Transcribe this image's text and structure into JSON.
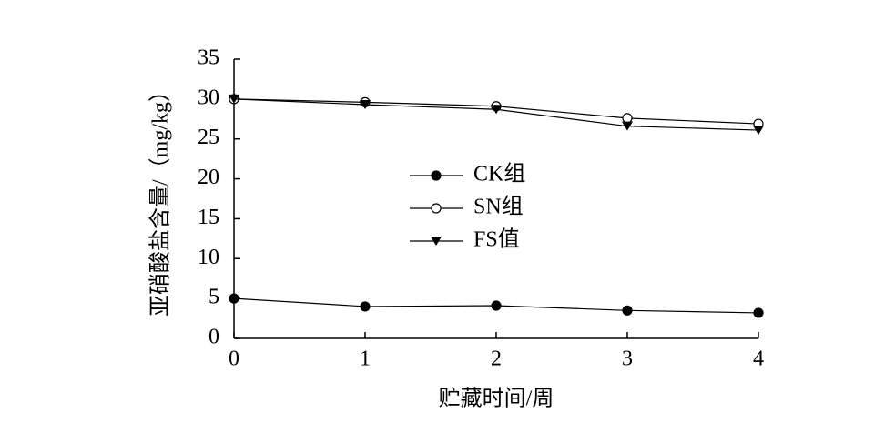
{
  "chart_data": {
    "type": "line",
    "x_label": "贮藏时间/周",
    "y_label": "亚硝酸盐含量/（mg/kg）",
    "x": [
      0,
      1,
      2,
      3,
      4
    ],
    "xlim": [
      0,
      4
    ],
    "xticks": [
      0,
      1,
      2,
      3,
      4
    ],
    "ylim": [
      0,
      35
    ],
    "yticks": [
      0,
      5,
      10,
      15,
      20,
      25,
      30,
      35
    ],
    "series": [
      {
        "name": "CK组",
        "color": "#000000",
        "marker": "filled-circle",
        "values": [
          5.0,
          4.0,
          4.1,
          3.5,
          3.2
        ]
      },
      {
        "name": "SN组",
        "color": "#000000",
        "marker": "open-circle",
        "values": [
          30.0,
          29.6,
          29.1,
          27.6,
          26.9
        ]
      },
      {
        "name": "FS值",
        "color": "#000000",
        "marker": "down-triangle",
        "values": [
          30.0,
          29.3,
          28.7,
          26.6,
          26.1
        ]
      }
    ]
  }
}
